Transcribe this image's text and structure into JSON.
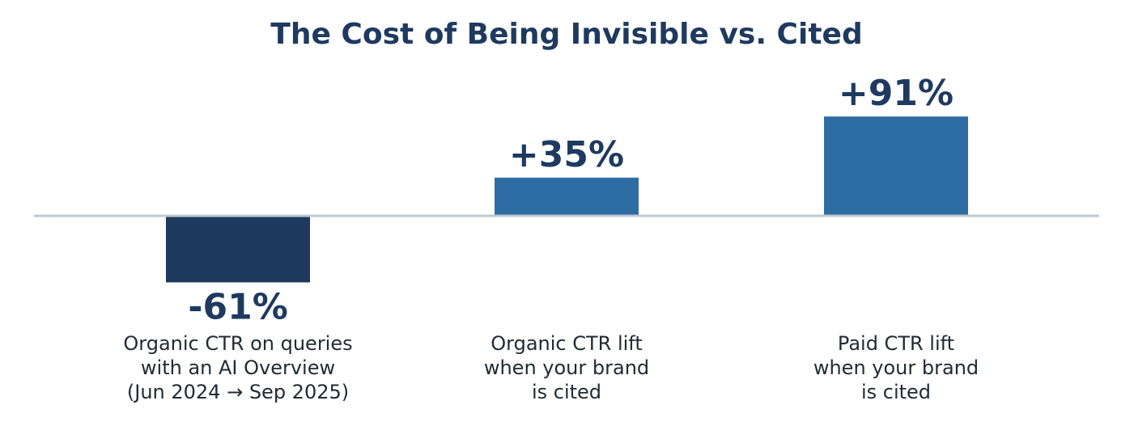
{
  "chart_data": {
    "type": "bar",
    "title": "The Cost of Being Invisible vs. Cited",
    "categories": [
      [
        "Organic CTR on queries",
        "with an AI Overview",
        "(Jun 2024 → Sep 2025)"
      ],
      [
        "Organic CTR lift",
        "when your brand",
        "is cited"
      ],
      [
        "Paid CTR lift",
        "when your brand",
        "is cited"
      ]
    ],
    "values": [
      -61,
      35,
      91
    ],
    "value_labels": [
      "-61%",
      "+35%",
      "+91%"
    ],
    "xlabel": "",
    "ylabel": "",
    "ylim": [
      -100,
      100
    ],
    "grid": false,
    "legend": "none",
    "colors": {
      "negative": "#1e3a5f",
      "positive": "#2e6da4",
      "baseline": "#c0c8d0",
      "title": "#1e3a5f",
      "value_text": "#1e3a5f",
      "category_text": "#222b33"
    }
  }
}
